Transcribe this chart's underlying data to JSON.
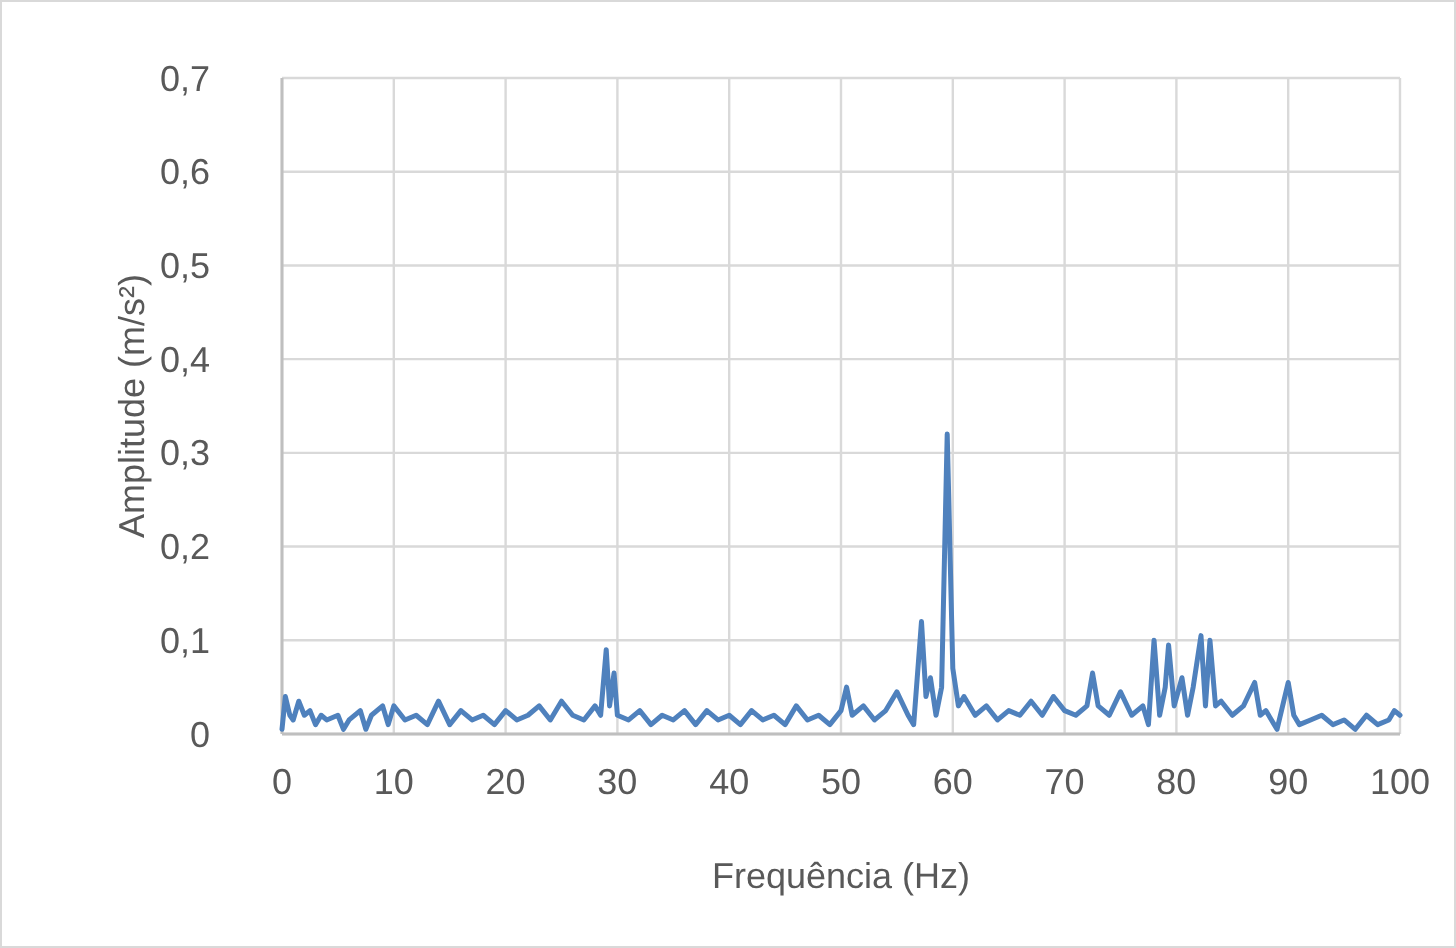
{
  "chart_data": {
    "type": "line",
    "xlabel": "Frequência (Hz)",
    "ylabel": "Amplitude (m/s²)",
    "xlim": [
      0,
      100
    ],
    "xticks": [
      0,
      10,
      20,
      30,
      40,
      50,
      60,
      70,
      80,
      90,
      100
    ],
    "ylim": [
      0,
      0.7
    ],
    "yticks": [
      {
        "value": 0,
        "label": "0"
      },
      {
        "value": 0.1,
        "label": "0,1"
      },
      {
        "value": 0.2,
        "label": "0,2"
      },
      {
        "value": 0.3,
        "label": "0,3"
      },
      {
        "value": 0.4,
        "label": "0,4"
      },
      {
        "value": 0.5,
        "label": "0,5"
      },
      {
        "value": 0.6,
        "label": "0,6"
      },
      {
        "value": 0.7,
        "label": "0,7"
      }
    ],
    "grid": true,
    "line_style": "solid",
    "series": [
      {
        "color": "#4f81bd",
        "x": [
          0,
          0.3,
          0.7,
          1,
          1.5,
          2,
          2.5,
          3,
          3.5,
          4,
          5,
          5.5,
          6,
          7,
          7.5,
          8,
          9,
          9.5,
          10,
          11,
          12,
          13,
          14,
          15,
          16,
          17,
          18,
          19,
          20,
          21,
          22,
          23,
          24,
          25,
          26,
          27,
          28,
          28.5,
          29,
          29.3,
          29.7,
          30,
          31,
          32,
          33,
          34,
          35,
          36,
          37,
          38,
          39,
          40,
          41,
          42,
          43,
          44,
          45,
          46,
          47,
          48,
          49,
          50,
          50.5,
          51,
          52,
          53,
          54,
          55,
          56,
          56.5,
          57.2,
          57.6,
          58,
          58.5,
          59,
          59.5,
          60,
          60.5,
          61,
          62,
          63,
          64,
          65,
          66,
          67,
          68,
          69,
          70,
          71,
          72,
          72.5,
          73,
          74,
          75,
          76,
          77,
          77.5,
          78,
          78.5,
          79,
          79.3,
          79.8,
          80.5,
          81,
          81.5,
          82.2,
          82.6,
          83,
          83.5,
          84,
          85,
          86,
          87,
          87.5,
          88,
          89,
          90,
          90.5,
          91,
          92,
          93,
          94,
          95,
          96,
          97,
          98,
          99,
          99.5,
          100
        ],
        "values": [
          0.005,
          0.04,
          0.02,
          0.015,
          0.035,
          0.02,
          0.025,
          0.01,
          0.02,
          0.015,
          0.02,
          0.005,
          0.015,
          0.025,
          0.005,
          0.02,
          0.03,
          0.01,
          0.03,
          0.015,
          0.02,
          0.01,
          0.035,
          0.01,
          0.025,
          0.015,
          0.02,
          0.01,
          0.025,
          0.015,
          0.02,
          0.03,
          0.015,
          0.035,
          0.02,
          0.015,
          0.03,
          0.02,
          0.09,
          0.03,
          0.065,
          0.02,
          0.015,
          0.025,
          0.01,
          0.02,
          0.015,
          0.025,
          0.01,
          0.025,
          0.015,
          0.02,
          0.01,
          0.025,
          0.015,
          0.02,
          0.01,
          0.03,
          0.015,
          0.02,
          0.01,
          0.025,
          0.05,
          0.02,
          0.03,
          0.015,
          0.025,
          0.045,
          0.02,
          0.01,
          0.12,
          0.04,
          0.06,
          0.02,
          0.05,
          0.32,
          0.07,
          0.03,
          0.04,
          0.02,
          0.03,
          0.015,
          0.025,
          0.02,
          0.035,
          0.02,
          0.04,
          0.025,
          0.02,
          0.03,
          0.065,
          0.03,
          0.02,
          0.045,
          0.02,
          0.03,
          0.01,
          0.1,
          0.02,
          0.05,
          0.095,
          0.03,
          0.06,
          0.02,
          0.05,
          0.105,
          0.03,
          0.1,
          0.03,
          0.035,
          0.02,
          0.03,
          0.055,
          0.02,
          0.025,
          0.005,
          0.055,
          0.02,
          0.01,
          0.015,
          0.02,
          0.01,
          0.015,
          0.005,
          0.02,
          0.01,
          0.015,
          0.025,
          0.02
        ]
      }
    ]
  }
}
